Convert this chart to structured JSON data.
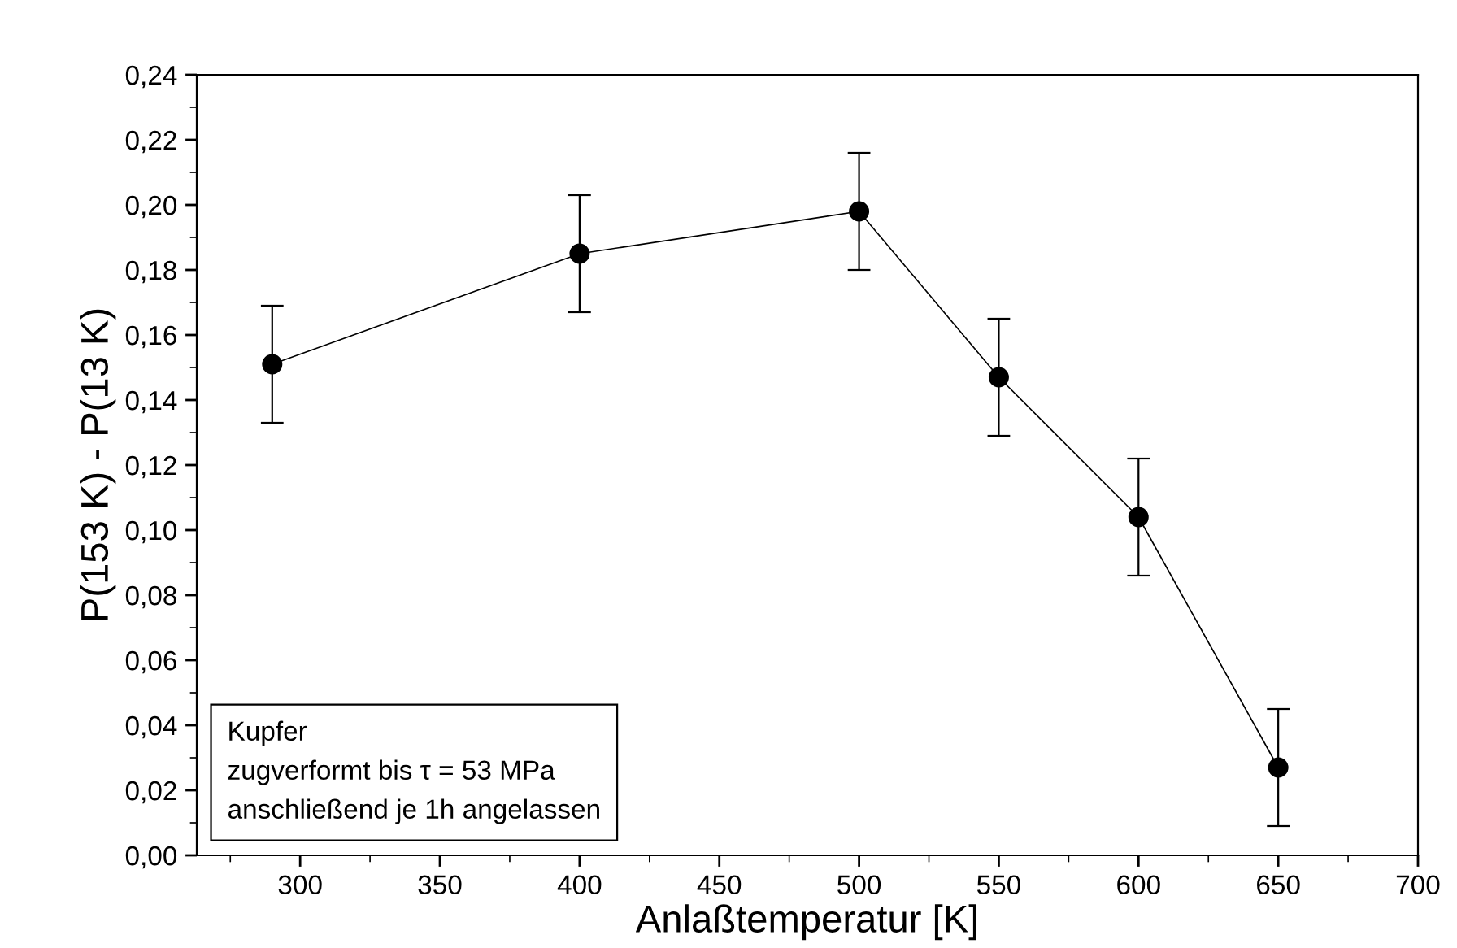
{
  "chart_data": {
    "type": "line",
    "xlabel": "Anlaßtemperatur [K]",
    "ylabel": "P(153 K) - P(13 K)",
    "x": [
      290,
      400,
      500,
      550,
      600,
      650
    ],
    "series": [
      {
        "color": "#000000",
        "values": [
          0.151,
          0.185,
          0.198,
          0.147,
          0.104,
          0.027
        ],
        "errors": [
          0.018,
          0.018,
          0.018,
          0.018,
          0.018,
          0.018
        ]
      }
    ],
    "marker": "circle",
    "line_style": "solid",
    "grid": false,
    "legend": false,
    "xlim": [
      263,
      700
    ],
    "xticks": [
      300,
      350,
      400,
      450,
      500,
      550,
      600,
      650,
      700
    ],
    "ylim": [
      0,
      0.24
    ],
    "yticks": [
      {
        "value": 0,
        "label": "0,00"
      },
      {
        "value": 0.02,
        "label": "0,02"
      },
      {
        "value": 0.04,
        "label": "0,04"
      },
      {
        "value": 0.06,
        "label": "0,06"
      },
      {
        "value": 0.08,
        "label": "0,08"
      },
      {
        "value": 0.1,
        "label": "0,10"
      },
      {
        "value": 0.12,
        "label": "0,12"
      },
      {
        "value": 0.14,
        "label": "0,14"
      },
      {
        "value": 0.16,
        "label": "0,16"
      },
      {
        "value": 0.18,
        "label": "0,18"
      },
      {
        "value": 0.2,
        "label": "0,20"
      },
      {
        "value": 0.22,
        "label": "0,22"
      },
      {
        "value": 0.24,
        "label": "0,24"
      }
    ],
    "annotations": [
      "Kupfer",
      "zugverformt bis τ = 53 MPa",
      "anschließend je 1h angelassen"
    ]
  }
}
